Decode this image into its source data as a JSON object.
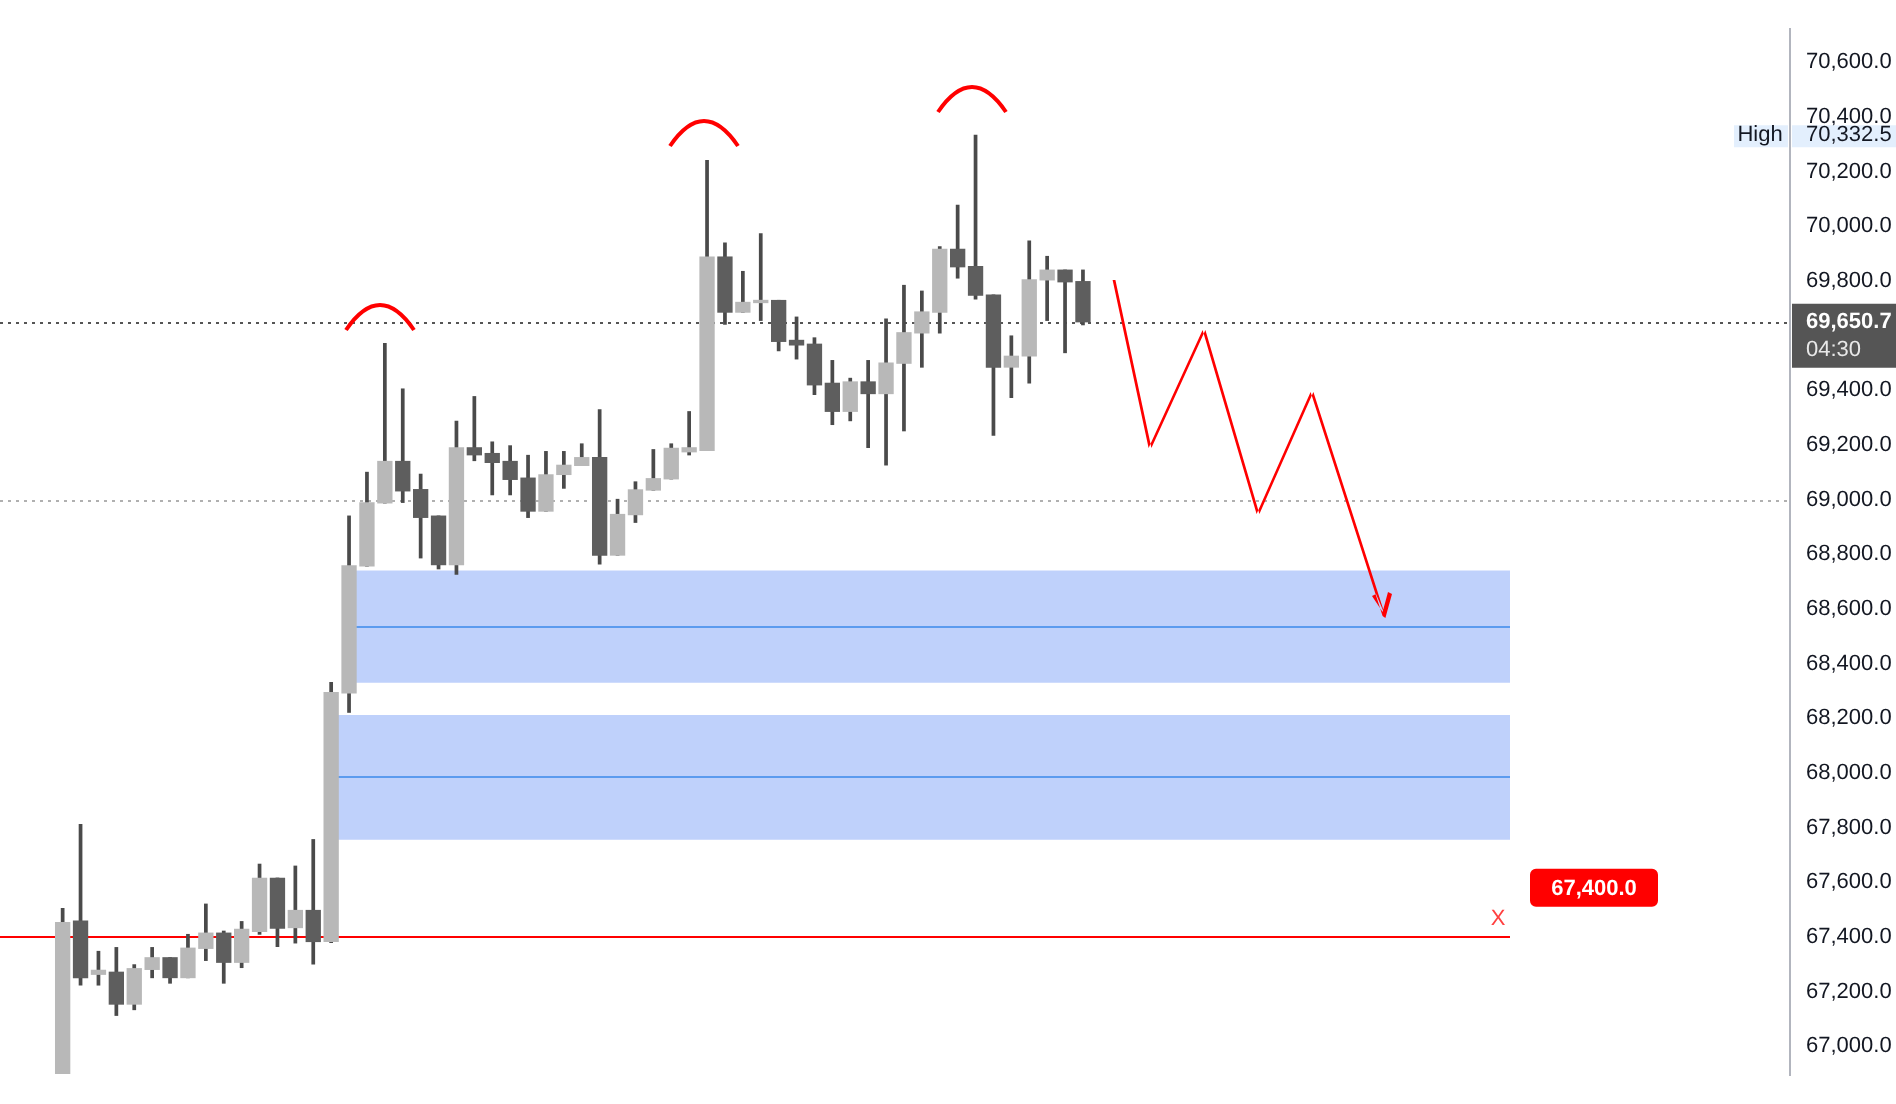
{
  "chart_data": {
    "type": "candlestick",
    "categories": [
      null,
      null,
      null,
      null,
      null,
      null,
      null,
      null,
      null,
      null,
      null,
      null,
      null,
      null,
      null,
      null,
      null,
      null,
      null,
      null,
      null,
      null,
      null,
      null,
      null,
      null,
      null,
      null,
      null,
      null,
      null,
      null,
      null,
      null,
      null,
      null,
      null,
      null,
      null,
      null,
      null,
      null,
      null,
      null,
      null,
      null,
      null,
      null,
      null,
      null,
      null,
      null,
      null,
      null,
      null,
      null,
      null,
      null,
      null,
      null,
      null,
      null,
      null,
      null,
      null,
      null,
      null,
      null,
      null,
      null,
      null,
      null,
      null,
      null,
      null,
      null,
      null,
      null,
      null,
      null,
      null,
      null,
      null,
      null,
      null,
      null,
      null,
      null,
      null,
      null,
      null,
      null,
      null,
      null,
      null,
      null,
      null,
      null,
      null,
      null
    ],
    "ohlc": [
      null,
      null,
      null,
      [
        66900,
        67503,
        66900,
        67452
      ],
      [
        67457,
        67810,
        67224,
        67251
      ],
      [
        67263,
        67346,
        67224,
        67277
      ],
      [
        67270,
        67360,
        67113,
        67154
      ],
      [
        67154,
        67297,
        67134,
        67283
      ],
      [
        67281,
        67360,
        67251,
        67323
      ],
      [
        67323,
        67323,
        67231,
        67251
      ],
      [
        67251,
        67408,
        67251,
        67358
      ],
      [
        67358,
        67519,
        67314,
        67413
      ],
      [
        67413,
        67420,
        67231,
        67307
      ],
      [
        67307,
        67455,
        67288,
        67427
      ],
      [
        67420,
        67665,
        67410,
        67614
      ],
      [
        67614,
        67614,
        67365,
        67432
      ],
      [
        67434,
        67658,
        67378,
        67496
      ],
      [
        67496,
        67755,
        67301,
        67383
      ],
      [
        67383,
        68330,
        67380,
        68293
      ],
      [
        68293,
        68939,
        68222,
        68757
      ],
      [
        68757,
        69099,
        68757,
        68988
      ],
      [
        68988,
        69570,
        68988,
        69139
      ],
      [
        69139,
        69404,
        68990,
        69032
      ],
      [
        69036,
        69092,
        68787,
        68935
      ],
      [
        68939,
        68939,
        68747,
        68762
      ],
      [
        68762,
        69286,
        68727,
        69189
      ],
      [
        69189,
        69376,
        69143,
        69164
      ],
      [
        69168,
        69210,
        69018,
        69136
      ],
      [
        69139,
        69196,
        69018,
        69074
      ],
      [
        69078,
        69161,
        68935,
        68958
      ],
      [
        68958,
        69175,
        68958,
        69090
      ],
      [
        69092,
        69175,
        69042,
        69125
      ],
      [
        69125,
        69203,
        69125,
        69153
      ],
      [
        69153,
        69328,
        68765,
        68797
      ],
      [
        68797,
        69000,
        68797,
        68945
      ],
      [
        68945,
        69064,
        68917,
        69035
      ],
      [
        69035,
        69182,
        69035,
        69076
      ],
      [
        69076,
        69203,
        69076,
        69187
      ],
      [
        69175,
        69321,
        69164,
        69189
      ],
      [
        69180,
        70240,
        69180,
        69887
      ],
      [
        69887,
        69938,
        69642,
        69686
      ],
      [
        69686,
        69834,
        69686,
        69721
      ],
      [
        69721,
        69972,
        69656,
        69728
      ],
      [
        69728,
        69728,
        69545,
        69579
      ],
      [
        69582,
        69667,
        69515,
        69566
      ],
      [
        69568,
        69591,
        69385,
        69420
      ],
      [
        69425,
        69508,
        69275,
        69323
      ],
      [
        69323,
        69443,
        69289,
        69430
      ],
      [
        69430,
        69508,
        69191,
        69388
      ],
      [
        69388,
        69660,
        69127,
        69499
      ],
      [
        69499,
        69783,
        69252,
        69610
      ],
      [
        69610,
        69762,
        69485,
        69686
      ],
      [
        69686,
        69924,
        69610,
        69915
      ],
      [
        69915,
        70076,
        69811,
        69852
      ],
      [
        69852,
        70332.5,
        69734,
        69748
      ],
      [
        69748,
        69748,
        69236,
        69485
      ],
      [
        69485,
        69598,
        69374,
        69524
      ],
      [
        69526,
        69945,
        69427,
        69804
      ],
      [
        69804,
        69889,
        69656,
        69839
      ],
      [
        69839,
        69839,
        69538,
        69797
      ],
      [
        69797,
        69839,
        69640,
        69650.7
      ],
      null,
      null,
      null,
      null,
      null,
      null,
      null,
      null,
      null,
      null,
      null,
      null,
      null,
      null,
      null,
      null,
      null,
      null,
      null,
      null,
      null,
      null,
      null,
      null,
      null,
      null,
      null,
      null,
      null,
      null,
      null,
      null,
      null,
      null,
      null,
      null,
      null,
      null,
      null
    ],
    "colors": [
      null,
      null,
      null,
      "#b8b8b8",
      "#5e5e5e",
      "#b8b8b8",
      "#5e5e5e",
      "#b8b8b8",
      "#b8b8b8",
      "#5e5e5e",
      "#b8b8b8",
      "#b8b8b8",
      "#5e5e5e",
      "#b8b8b8",
      "#b8b8b8",
      "#5e5e5e",
      "#b8b8b8",
      "#5e5e5e",
      "#b8b8b8",
      "#b8b8b8",
      "#b8b8b8",
      "#b8b8b8",
      "#5e5e5e",
      "#5e5e5e",
      "#5e5e5e",
      "#b8b8b8",
      "#5e5e5e",
      "#5e5e5e",
      "#5e5e5e",
      "#5e5e5e",
      "#b8b8b8",
      "#b8b8b8",
      "#b8b8b8",
      "#5e5e5e",
      "#b8b8b8",
      "#b8b8b8",
      "#b8b8b8",
      "#b8b8b8",
      "#b8b8b8",
      "#b8b8b8",
      "#5e5e5e",
      "#b8b8b8",
      "#b8b8b8",
      "#5e5e5e",
      "#5e5e5e",
      "#5e5e5e",
      "#5e5e5e",
      "#b8b8b8",
      "#5e5e5e",
      "#b8b8b8",
      "#b8b8b8",
      "#b8b8b8",
      "#b8b8b8",
      "#5e5e5e",
      "#5e5e5e",
      "#5e5e5e",
      "#b8b8b8",
      "#b8b8b8",
      "#b8b8b8",
      "#5e5e5e",
      "#5e5e5e",
      null,
      null,
      null,
      null,
      null,
      null,
      null,
      null,
      null,
      null,
      null,
      null,
      null,
      null,
      null,
      null,
      null,
      null,
      null,
      null,
      null,
      null,
      null,
      null,
      null,
      null,
      null,
      null,
      null,
      null,
      null,
      null,
      null,
      null,
      null,
      null,
      null,
      null,
      null
    ],
    "ylim": [
      66895,
      70721
    ],
    "yticks": [
      {
        "value": 67000,
        "label": "67,000.0"
      },
      {
        "value": 67200,
        "label": "67,200.0"
      },
      {
        "value": 67400,
        "label": "67,400.0"
      },
      {
        "value": 67600,
        "label": "67,600.0"
      },
      {
        "value": 67800,
        "label": "67,800.0"
      },
      {
        "value": 68000,
        "label": "68,000.0"
      },
      {
        "value": 68200,
        "label": "68,200.0"
      },
      {
        "value": 68400,
        "label": "68,400.0"
      },
      {
        "value": 68600,
        "label": "68,600.0"
      },
      {
        "value": 68800,
        "label": "68,800.0"
      },
      {
        "value": 69000,
        "label": "69,000.0"
      },
      {
        "value": 69200,
        "label": "69,200.0"
      },
      {
        "value": 69400,
        "label": "69,400.0"
      },
      {
        "value": 69800,
        "label": "69,800.0"
      },
      {
        "value": 70000,
        "label": "70,000.0"
      },
      {
        "value": 70200,
        "label": "70,200.0"
      },
      {
        "value": 70400,
        "label": "70,400.0"
      },
      {
        "value": 70600,
        "label": "70,600.0"
      }
    ],
    "tick_labels": "y",
    "ref_lines": [
      {
        "axis": "y",
        "value": 69650.7,
        "label": "69,650.7",
        "color": "#555555",
        "line_style": "dotted"
      },
      {
        "axis": "y",
        "value": 69000,
        "color": "#b0b0b0",
        "line_style": "dotted"
      },
      {
        "axis": "y",
        "value": 67400,
        "label": "67,400.0",
        "color": "#ff0000",
        "line_style": "solid"
      },
      {
        "axis": "y",
        "value": 68540,
        "color": "#5b9bef",
        "line_style": "solid"
      },
      {
        "axis": "y",
        "value": 67990,
        "color": "#5b9bef",
        "line_style": "solid"
      }
    ],
    "bands": [
      {
        "axis": "y",
        "from": 68330,
        "to": 68740,
        "color": "#bfd1fb"
      },
      {
        "axis": "y",
        "from": 67755,
        "to": 68212,
        "color": "#bfd1fb"
      }
    ],
    "annotations": [
      "High",
      "70,332.5",
      "04:30",
      "X"
    ]
  }
}
